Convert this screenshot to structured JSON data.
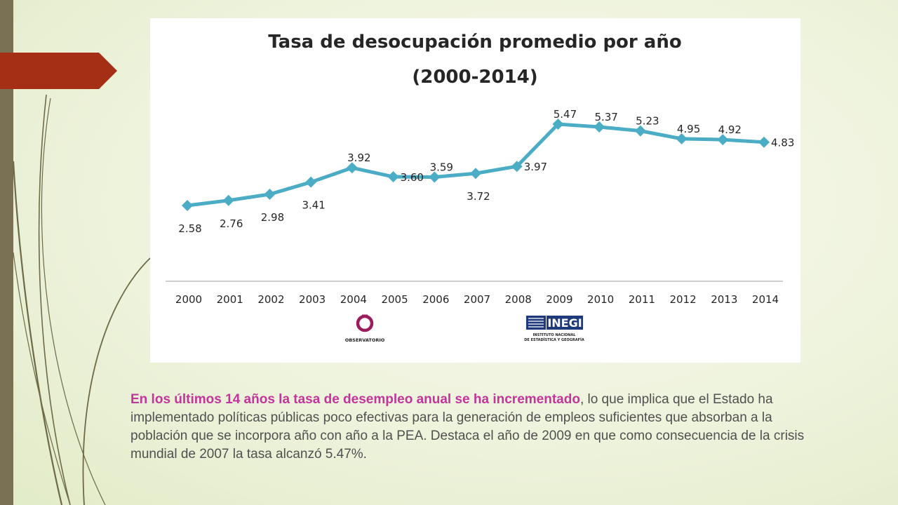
{
  "chart_data": {
    "type": "line",
    "title_lines": [
      "Tasa de desocupación promedio por año",
      "(2000-2014)"
    ],
    "x": [
      "2000",
      "2001",
      "2002",
      "2003",
      "2004",
      "2005",
      "2006",
      "2007",
      "2008",
      "2009",
      "2010",
      "2011",
      "2012",
      "2013",
      "2014"
    ],
    "series": [
      {
        "values": [
          2.58,
          2.76,
          2.98,
          3.41,
          3.92,
          3.6,
          3.59,
          3.72,
          3.97,
          5.47,
          5.37,
          5.23,
          4.95,
          4.92,
          4.83
        ],
        "labels": [
          "2.58",
          "2.76",
          "2.98",
          "3.41",
          "3.92",
          "3.60",
          "3.59",
          "3.72",
          "3.97",
          "5.47",
          "5.37",
          "5.23",
          "4.95",
          "4.92",
          "4.83"
        ]
      }
    ],
    "label_placement": [
      "below",
      "below",
      "below",
      "below",
      "above",
      "right",
      "above",
      "below",
      "right",
      "above",
      "above",
      "above",
      "above",
      "above",
      "right"
    ],
    "ylim": [
      0.7,
      5.8
    ],
    "grid": false,
    "line_color": "#4bacc6",
    "axis_color": "#bfbfbf"
  },
  "logos": {
    "observatorio": {
      "name": "OBSERVATORIO",
      "color": "#9b1c5a"
    },
    "inegi": {
      "name": "INEGI",
      "subtitle_lines": [
        "INSTITUTO NACIONAL",
        "DE ESTADÍSTICA Y GEOGRAFÍA"
      ],
      "color": "#1f3a7a"
    }
  },
  "caption": {
    "highlight": "En los últimos 14 años la tasa de desempleo anual se ha incrementado",
    "rest": ", lo que implica que el Estado ha implementado políticas públicas poco efectivas para la generación de empleos suficientes que absorban a la población que se incorpora año con año a la PEA. Destaca el año de 2009 en que como consecuencia de la crisis mundial de 2007 la tasa alcanzó 5.47%."
  },
  "theme": {
    "pennant_color": "#a52f14",
    "sidebar_color": "#7a7155",
    "swoosh_color": "#6c6a47"
  }
}
